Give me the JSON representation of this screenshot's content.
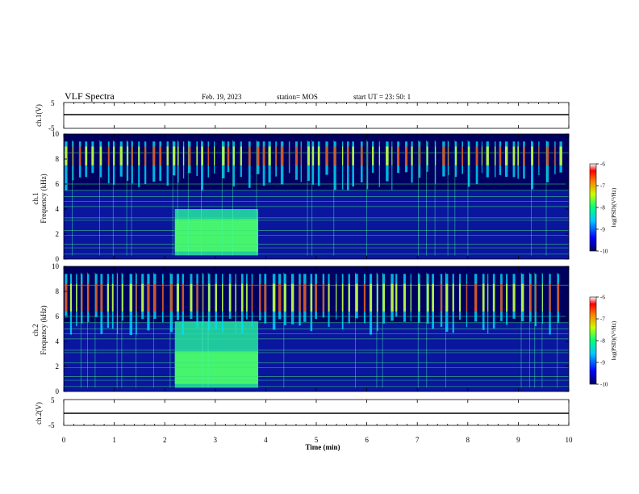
{
  "header": {
    "title": "VLF Spectra",
    "date": "Feb. 19, 2023",
    "station": "station= MOS",
    "start": "start  UT  =   23: 50: 1"
  },
  "colors": {
    "background": "#000060",
    "accent": "#ff0000"
  },
  "chart_data": [
    {
      "type": "line",
      "name": "ch1-waveform",
      "ylabel": "ch.1(V)",
      "ylim": [
        -5,
        5
      ],
      "yticks": [
        "5",
        "-5"
      ],
      "x": [
        0,
        10
      ],
      "values": [
        0,
        0
      ]
    },
    {
      "type": "heatmap",
      "name": "ch1-spectrogram",
      "ylabel": "ch.1",
      "ylabel2": "Frequency (kHz)",
      "ylim": [
        0,
        10
      ],
      "yticks": [
        "0",
        "2",
        "4",
        "6",
        "8",
        "10"
      ],
      "xlim": [
        0,
        10
      ],
      "enhanced_band_min": [
        2.2,
        3.85
      ],
      "colorbar": {
        "label": "log(PSD)(V²/Hz)",
        "ticks": [
          "-6",
          "-7",
          "-8",
          "-9",
          "-10"
        ],
        "range": [
          -10,
          -6
        ]
      }
    },
    {
      "type": "heatmap",
      "name": "ch2-spectrogram",
      "ylabel": "ch.2",
      "ylabel2": "Frequency (kHz)",
      "ylim": [
        0,
        10
      ],
      "yticks": [
        "0",
        "2",
        "4",
        "6",
        "8",
        "10"
      ],
      "xlim": [
        0,
        10
      ],
      "enhanced_band_min": [
        2.2,
        3.85
      ],
      "colorbar": {
        "label": "log(PSD)(V²/Hz)",
        "ticks": [
          "-6",
          "-7",
          "-8",
          "-9",
          "-10"
        ],
        "range": [
          -10,
          -6
        ]
      }
    },
    {
      "type": "line",
      "name": "ch2-waveform",
      "ylabel": "ch.2(V)",
      "ylim": [
        -5,
        5
      ],
      "yticks": [
        "5",
        "-5"
      ],
      "x": [
        0,
        10
      ],
      "values": [
        0,
        0
      ]
    }
  ],
  "xaxis": {
    "label": "Time  (min)",
    "ticks": [
      "0",
      "1",
      "2",
      "3",
      "4",
      "5",
      "6",
      "7",
      "8",
      "9",
      "10"
    ]
  }
}
